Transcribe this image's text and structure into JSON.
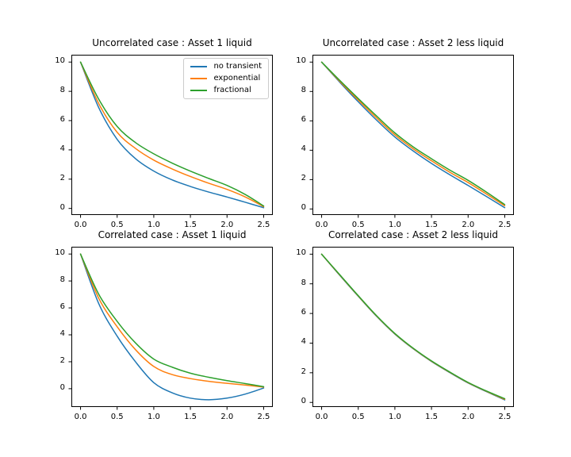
{
  "figure": {
    "background": "#ffffff",
    "text_color": "#000000",
    "spine_color": "#000000"
  },
  "legend": {
    "visible_on_subplot": 0,
    "position": "upper right"
  },
  "chart_data": [
    {
      "type": "line",
      "title": "Uncorrelated case : Asset 1 liquid",
      "xlabel": "",
      "ylabel": "",
      "grid": false,
      "xlim": [
        -0.125,
        2.625
      ],
      "ylim": [
        -0.45,
        10.5
      ],
      "xticks": [
        0,
        0.5,
        1,
        1.5,
        2,
        2.5
      ],
      "xtick_labels": [
        "0.0",
        "0.5",
        "1.0",
        "1.5",
        "2.0",
        "2.5"
      ],
      "yticks": [
        0,
        2,
        4,
        6,
        8,
        10
      ],
      "ytick_labels": [
        "0",
        "2",
        "4",
        "6",
        "8",
        "10"
      ],
      "x": [
        0,
        0.25,
        0.5,
        0.75,
        1.0,
        1.25,
        1.5,
        1.75,
        2.0,
        2.25,
        2.5
      ],
      "series": [
        {
          "name": "no transient",
          "color": "#1f77b4",
          "values": [
            10,
            6.87,
            4.72,
            3.4,
            2.55,
            1.95,
            1.5,
            1.12,
            0.78,
            0.42,
            0.05
          ]
        },
        {
          "name": "exponential",
          "color": "#ff7f0e",
          "values": [
            10,
            7.15,
            5.2,
            4.1,
            3.3,
            2.7,
            2.18,
            1.72,
            1.3,
            0.78,
            0.12
          ]
        },
        {
          "name": "fractional",
          "color": "#2ca02c",
          "values": [
            10,
            7.45,
            5.6,
            4.5,
            3.73,
            3.1,
            2.55,
            2.05,
            1.57,
            0.95,
            0.17
          ]
        }
      ]
    },
    {
      "type": "line",
      "title": "Uncorrelated case : Asset 2 less liquid",
      "xlabel": "",
      "ylabel": "",
      "grid": false,
      "xlim": [
        -0.125,
        2.625
      ],
      "ylim": [
        -0.41,
        10.5
      ],
      "xticks": [
        0,
        0.5,
        1,
        1.5,
        2,
        2.5
      ],
      "xtick_labels": [
        "0.0",
        "0.5",
        "1.0",
        "1.5",
        "2.0",
        "2.5"
      ],
      "yticks": [
        0,
        2,
        4,
        6,
        8,
        10
      ],
      "ytick_labels": [
        "0",
        "2",
        "4",
        "6",
        "8",
        "10"
      ],
      "x": [
        0,
        0.25,
        0.5,
        0.75,
        1.0,
        1.25,
        1.5,
        1.75,
        2.0,
        2.25,
        2.5
      ],
      "series": [
        {
          "name": "no transient",
          "color": "#1f77b4",
          "values": [
            10,
            8.62,
            7.3,
            6.05,
            4.9,
            3.95,
            3.1,
            2.33,
            1.6,
            0.85,
            0.09
          ]
        },
        {
          "name": "exponential",
          "color": "#ff7f0e",
          "values": [
            10,
            8.68,
            7.42,
            6.2,
            5.05,
            4.1,
            3.28,
            2.5,
            1.8,
            1.02,
            0.22
          ]
        },
        {
          "name": "fractional",
          "color": "#2ca02c",
          "values": [
            10,
            8.74,
            7.52,
            6.33,
            5.18,
            4.23,
            3.42,
            2.65,
            1.95,
            1.15,
            0.3
          ]
        }
      ]
    },
    {
      "type": "line",
      "title": "Correlated case : Asset 1 liquid",
      "xlabel": "",
      "ylabel": "",
      "grid": false,
      "xlim": [
        -0.125,
        2.625
      ],
      "ylim": [
        -1.36,
        10.54
      ],
      "xticks": [
        0,
        0.5,
        1,
        1.5,
        2,
        2.5
      ],
      "xtick_labels": [
        "0.0",
        "0.5",
        "1.0",
        "1.5",
        "2.0",
        "2.5"
      ],
      "yticks": [
        0,
        2,
        4,
        6,
        8,
        10
      ],
      "ytick_labels": [
        "0",
        "2",
        "4",
        "6",
        "8",
        "10"
      ],
      "x": [
        0,
        0.25,
        0.5,
        0.75,
        1.0,
        1.25,
        1.5,
        1.75,
        2.0,
        2.25,
        2.5
      ],
      "series": [
        {
          "name": "no transient",
          "color": "#1f77b4",
          "values": [
            10,
            6.3,
            3.9,
            2.0,
            0.45,
            -0.3,
            -0.7,
            -0.82,
            -0.7,
            -0.4,
            0.05
          ]
        },
        {
          "name": "exponential",
          "color": "#ff7f0e",
          "values": [
            10,
            6.7,
            4.6,
            2.9,
            1.65,
            1.05,
            0.75,
            0.55,
            0.4,
            0.27,
            0.12
          ]
        },
        {
          "name": "fractional",
          "color": "#2ca02c",
          "values": [
            10,
            7.0,
            5.0,
            3.4,
            2.2,
            1.6,
            1.15,
            0.85,
            0.6,
            0.38,
            0.15
          ]
        }
      ]
    },
    {
      "type": "line",
      "title": "Correlated case : Asset 2 less liquid",
      "xlabel": "",
      "ylabel": "",
      "grid": false,
      "xlim": [
        -0.125,
        2.625
      ],
      "ylim": [
        -0.31,
        10.5
      ],
      "xticks": [
        0,
        0.5,
        1,
        1.5,
        2,
        2.5
      ],
      "xtick_labels": [
        "0.0",
        "0.5",
        "1.0",
        "1.5",
        "2.0",
        "2.5"
      ],
      "yticks": [
        0,
        2,
        4,
        6,
        8,
        10
      ],
      "ytick_labels": [
        "0",
        "2",
        "4",
        "6",
        "8",
        "10"
      ],
      "x": [
        0,
        0.25,
        0.5,
        0.75,
        1.0,
        1.25,
        1.5,
        1.75,
        2.0,
        2.25,
        2.5
      ],
      "series": [
        {
          "name": "no transient",
          "color": "#1f77b4",
          "values": [
            10,
            8.56,
            7.16,
            5.81,
            4.61,
            3.62,
            2.76,
            2.01,
            1.31,
            0.73,
            0.17
          ]
        },
        {
          "name": "exponential",
          "color": "#ff7f0e",
          "values": [
            10,
            8.58,
            7.18,
            5.83,
            4.63,
            3.64,
            2.78,
            2.03,
            1.33,
            0.75,
            0.21
          ]
        },
        {
          "name": "fractional",
          "color": "#2ca02c",
          "values": [
            10,
            8.6,
            7.2,
            5.85,
            4.65,
            3.66,
            2.8,
            2.05,
            1.35,
            0.77,
            0.25
          ]
        }
      ]
    }
  ]
}
